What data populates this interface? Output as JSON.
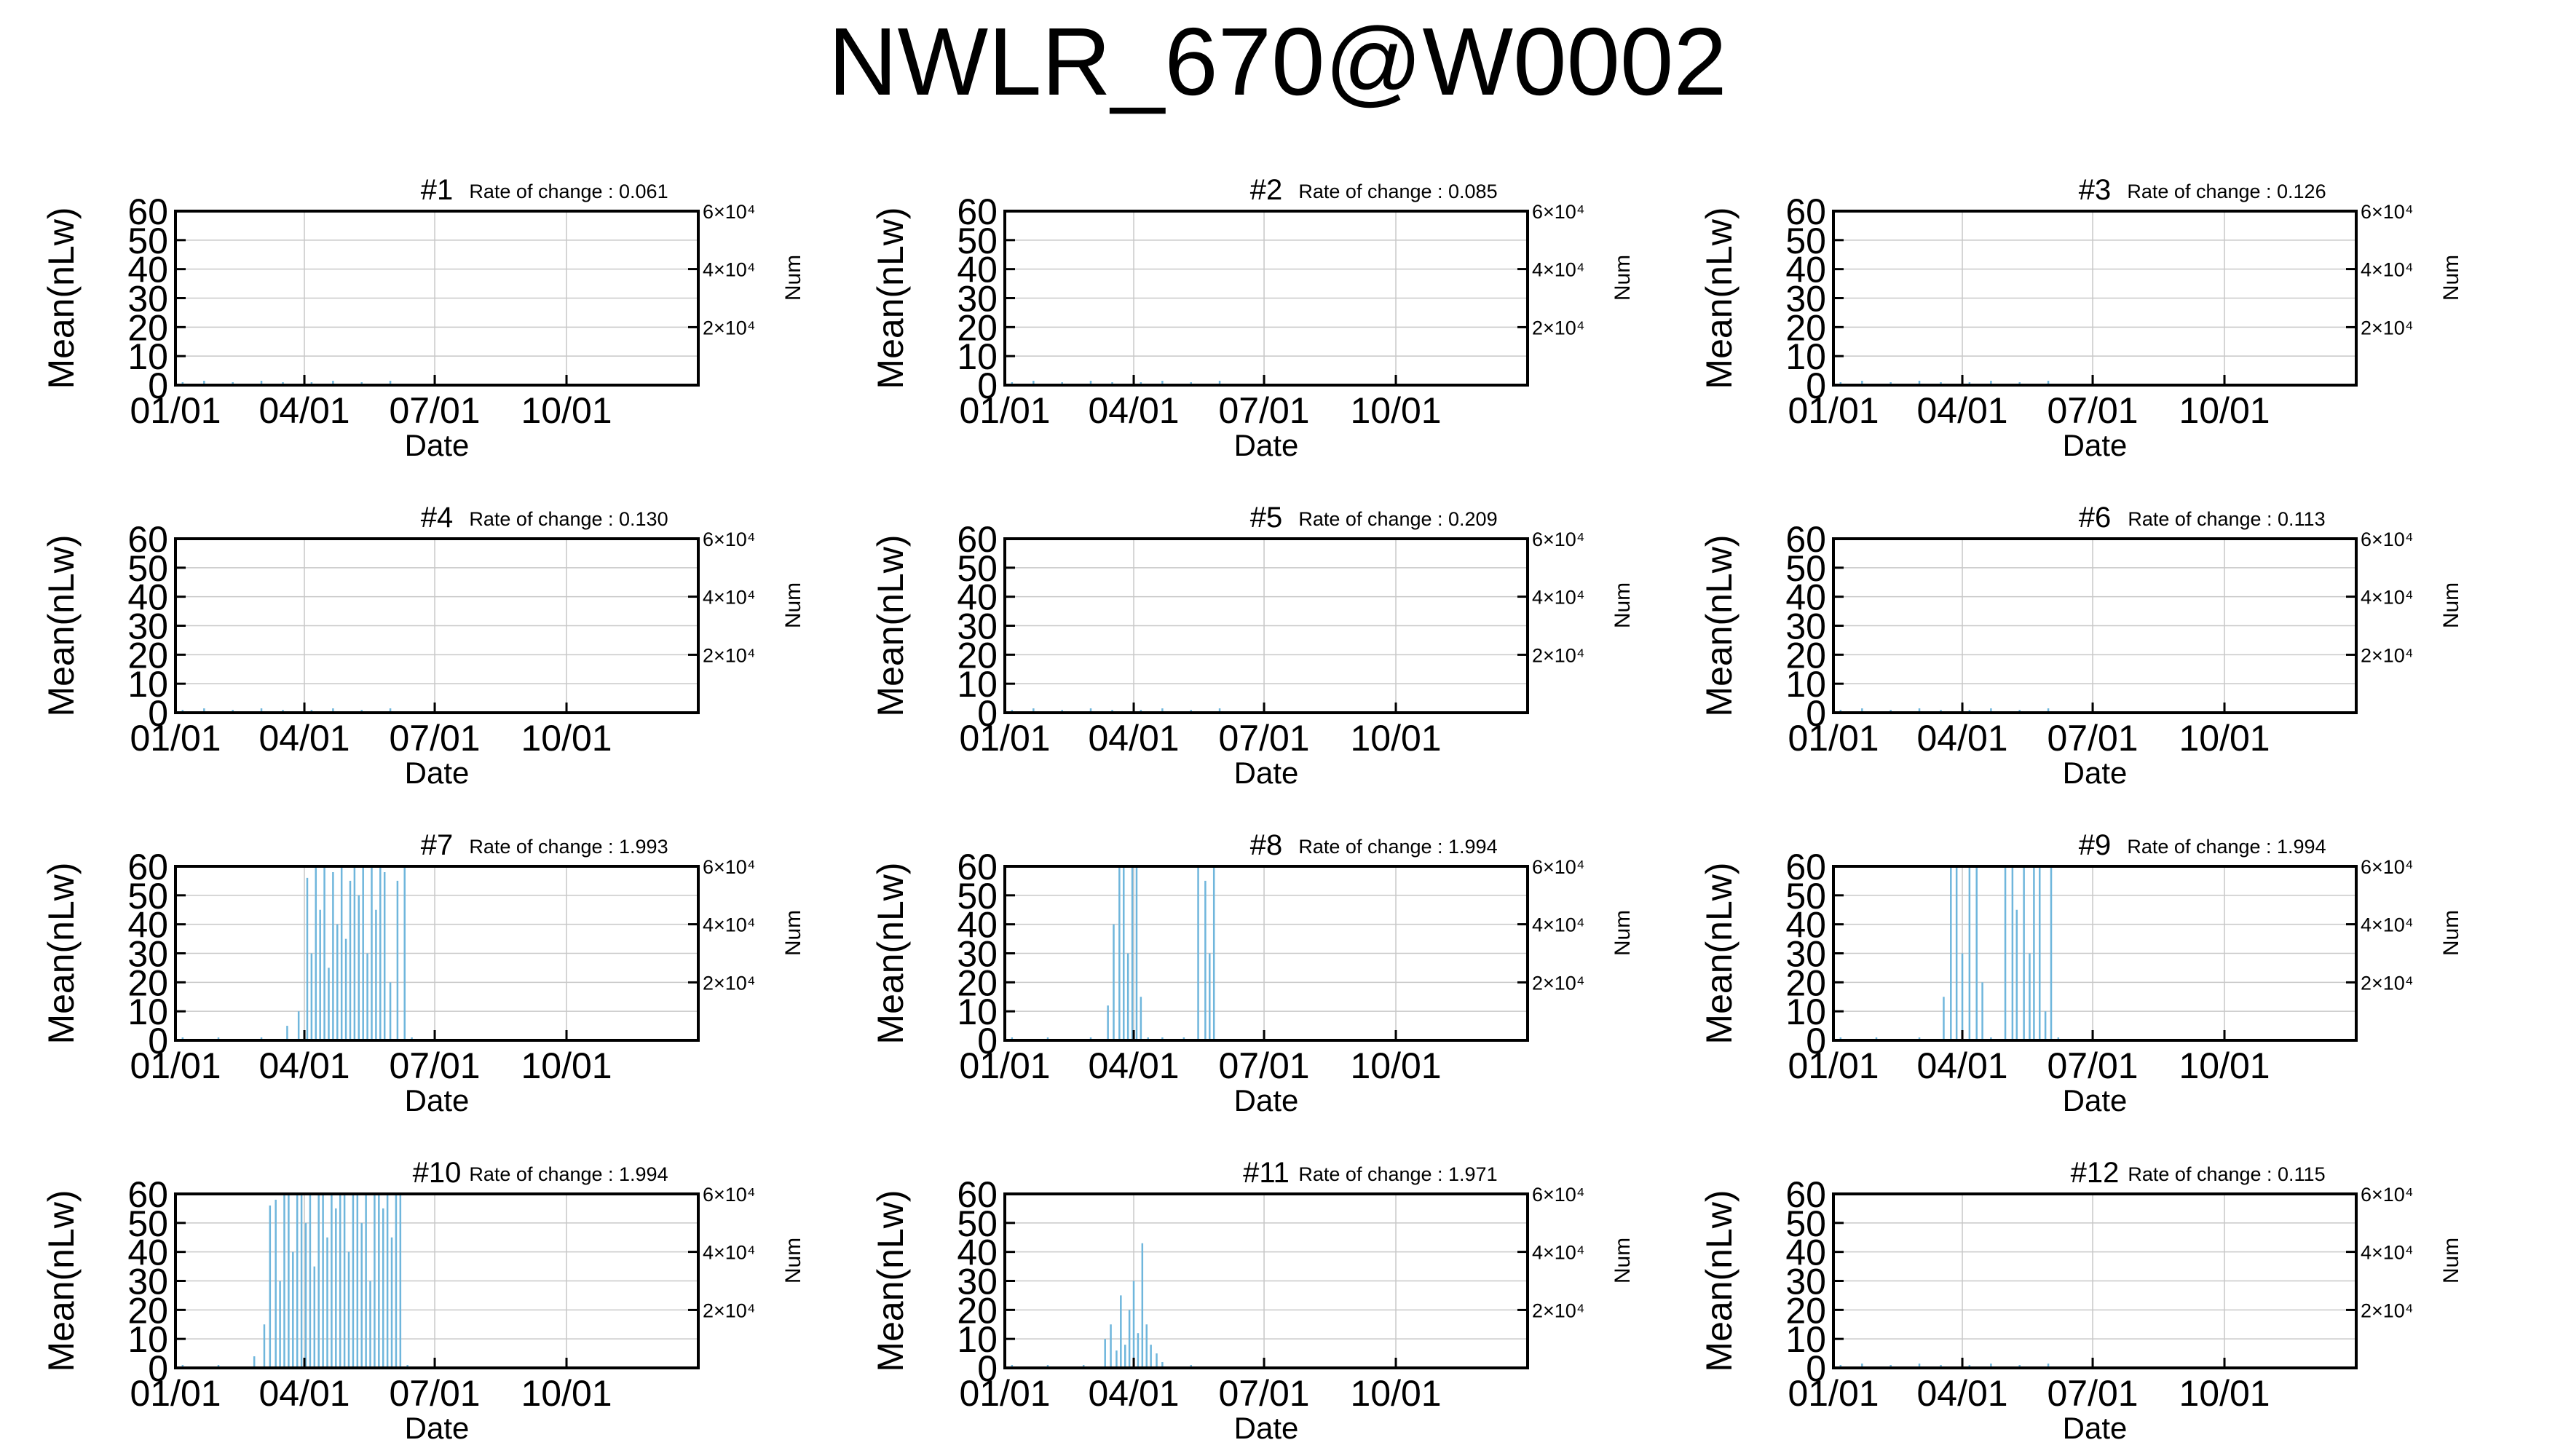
{
  "page": {
    "title": "NWLR_670@W0002"
  },
  "chart_data": [
    {
      "type": "line",
      "title": "#1",
      "annotation": "Rate of change : 0.061",
      "xlabel": "Date",
      "ylabel": "Mean(nLw)",
      "y2label": "Num",
      "xticks": [
        "01/01",
        "04/01",
        "07/01",
        "10/01"
      ],
      "xlim_days": [
        0,
        365
      ],
      "ylim": [
        0,
        60
      ],
      "yticks": [
        "0",
        "10",
        "20",
        "30",
        "40",
        "50",
        "60"
      ],
      "y2ticks": [
        "2×10⁴",
        "4×10⁴",
        "6×10⁴"
      ],
      "grid": true,
      "series": [
        {
          "style": "spikes",
          "color": "#6fb6dc",
          "x_days": [
            5,
            20,
            40,
            60,
            75,
            95,
            110,
            130,
            150
          ],
          "values": [
            1,
            1.5,
            1,
            1.5,
            1,
            1,
            1.5,
            1,
            1.5
          ]
        }
      ]
    },
    {
      "type": "line",
      "title": "#2",
      "annotation": "Rate of change : 0.085",
      "xlabel": "Date",
      "ylabel": "Mean(nLw)",
      "y2label": "Num",
      "xticks": [
        "01/01",
        "04/01",
        "07/01",
        "10/01"
      ],
      "xlim_days": [
        0,
        365
      ],
      "ylim": [
        0,
        60
      ],
      "yticks": [
        "0",
        "10",
        "20",
        "30",
        "40",
        "50",
        "60"
      ],
      "y2ticks": [
        "2×10⁴",
        "4×10⁴",
        "6×10⁴"
      ],
      "grid": true,
      "series": [
        {
          "style": "spikes",
          "color": "#6fb6dc",
          "x_days": [
            5,
            20,
            40,
            60,
            75,
            95,
            110,
            130,
            150
          ],
          "values": [
            1,
            1.5,
            1,
            1.5,
            1,
            1,
            1.5,
            1,
            1.5
          ]
        }
      ]
    },
    {
      "type": "line",
      "title": "#3",
      "annotation": "Rate of change : 0.126",
      "xlabel": "Date",
      "ylabel": "Mean(nLw)",
      "y2label": "Num",
      "xticks": [
        "01/01",
        "04/01",
        "07/01",
        "10/01"
      ],
      "xlim_days": [
        0,
        365
      ],
      "ylim": [
        0,
        60
      ],
      "yticks": [
        "0",
        "10",
        "20",
        "30",
        "40",
        "50",
        "60"
      ],
      "y2ticks": [
        "2×10⁴",
        "4×10⁴",
        "6×10⁴"
      ],
      "grid": true,
      "series": [
        {
          "style": "spikes",
          "color": "#6fb6dc",
          "x_days": [
            5,
            20,
            40,
            60,
            75,
            95,
            110,
            130,
            150
          ],
          "values": [
            1,
            1.5,
            1,
            1.5,
            1,
            1,
            1.5,
            1,
            1.5
          ]
        }
      ]
    },
    {
      "type": "line",
      "title": "#4",
      "annotation": "Rate of change : 0.130",
      "xlabel": "Date",
      "ylabel": "Mean(nLw)",
      "y2label": "Num",
      "xticks": [
        "01/01",
        "04/01",
        "07/01",
        "10/01"
      ],
      "xlim_days": [
        0,
        365
      ],
      "ylim": [
        0,
        60
      ],
      "yticks": [
        "0",
        "10",
        "20",
        "30",
        "40",
        "50",
        "60"
      ],
      "y2ticks": [
        "2×10⁴",
        "4×10⁴",
        "6×10⁴"
      ],
      "grid": true,
      "series": [
        {
          "style": "spikes",
          "color": "#6fb6dc",
          "x_days": [
            5,
            20,
            40,
            60,
            75,
            95,
            110,
            130,
            150
          ],
          "values": [
            1,
            1.5,
            1,
            1.5,
            1,
            1,
            1.5,
            1,
            1.5
          ]
        }
      ]
    },
    {
      "type": "line",
      "title": "#5",
      "annotation": "Rate of change : 0.209",
      "xlabel": "Date",
      "ylabel": "Mean(nLw)",
      "y2label": "Num",
      "xticks": [
        "01/01",
        "04/01",
        "07/01",
        "10/01"
      ],
      "xlim_days": [
        0,
        365
      ],
      "ylim": [
        0,
        60
      ],
      "yticks": [
        "0",
        "10",
        "20",
        "30",
        "40",
        "50",
        "60"
      ],
      "y2ticks": [
        "2×10⁴",
        "4×10⁴",
        "6×10⁴"
      ],
      "grid": true,
      "series": [
        {
          "style": "spikes",
          "color": "#6fb6dc",
          "x_days": [
            5,
            20,
            40,
            60,
            75,
            95,
            110,
            130,
            150
          ],
          "values": [
            1,
            1.5,
            1,
            1.5,
            1,
            1,
            1.5,
            1,
            1.5
          ]
        }
      ]
    },
    {
      "type": "line",
      "title": "#6",
      "annotation": "Rate of change : 0.113",
      "xlabel": "Date",
      "ylabel": "Mean(nLw)",
      "y2label": "Num",
      "xticks": [
        "01/01",
        "04/01",
        "07/01",
        "10/01"
      ],
      "xlim_days": [
        0,
        365
      ],
      "ylim": [
        0,
        60
      ],
      "yticks": [
        "0",
        "10",
        "20",
        "30",
        "40",
        "50",
        "60"
      ],
      "y2ticks": [
        "2×10⁴",
        "4×10⁴",
        "6×10⁴"
      ],
      "grid": true,
      "series": [
        {
          "style": "spikes",
          "color": "#6fb6dc",
          "x_days": [
            5,
            20,
            40,
            60,
            75,
            95,
            110,
            130,
            150
          ],
          "values": [
            1,
            1.5,
            1,
            1.5,
            1,
            1,
            1.5,
            1,
            1.5
          ]
        }
      ]
    },
    {
      "type": "line",
      "title": "#7",
      "annotation": "Rate of change : 1.993",
      "xlabel": "Date",
      "ylabel": "Mean(nLw)",
      "y2label": "Num",
      "xticks": [
        "01/01",
        "04/01",
        "07/01",
        "10/01"
      ],
      "xlim_days": [
        0,
        365
      ],
      "ylim": [
        0,
        60
      ],
      "yticks": [
        "0",
        "10",
        "20",
        "30",
        "40",
        "50",
        "60"
      ],
      "y2ticks": [
        "2×10⁴",
        "4×10⁴",
        "6×10⁴"
      ],
      "grid": true,
      "series": [
        {
          "style": "spikes",
          "color": "#6fb6dc",
          "x_days": [
            5,
            30,
            60,
            78,
            86,
            92,
            95,
            98,
            101,
            104,
            107,
            110,
            113,
            116,
            119,
            122,
            125,
            128,
            131,
            134,
            137,
            140,
            143,
            146,
            150,
            155,
            160,
            165
          ],
          "values": [
            1,
            1,
            1,
            5,
            10,
            56,
            30,
            60,
            45,
            60,
            25,
            58,
            40,
            60,
            35,
            55,
            60,
            50,
            60,
            30,
            60,
            45,
            60,
            58,
            20,
            55,
            60,
            1
          ]
        }
      ]
    },
    {
      "type": "line",
      "title": "#8",
      "annotation": "Rate of change : 1.994",
      "xlabel": "Date",
      "ylabel": "Mean(nLw)",
      "y2label": "Num",
      "xticks": [
        "01/01",
        "04/01",
        "07/01",
        "10/01"
      ],
      "xlim_days": [
        0,
        365
      ],
      "ylim": [
        0,
        60
      ],
      "yticks": [
        "0",
        "10",
        "20",
        "30",
        "40",
        "50",
        "60"
      ],
      "y2ticks": [
        "2×10⁴",
        "4×10⁴",
        "6×10⁴"
      ],
      "grid": true,
      "series": [
        {
          "style": "spikes",
          "color": "#6fb6dc",
          "x_days": [
            5,
            30,
            60,
            72,
            76,
            80,
            83,
            86,
            89,
            92,
            95,
            100,
            110,
            125,
            135,
            140,
            143,
            146
          ],
          "values": [
            1,
            1,
            1,
            12,
            40,
            60,
            60,
            30,
            60,
            60,
            15,
            1,
            1,
            1,
            60,
            55,
            30,
            60
          ]
        }
      ]
    },
    {
      "type": "line",
      "title": "#9",
      "annotation": "Rate of change : 1.994",
      "xlabel": "Date",
      "ylabel": "Mean(nLw)",
      "y2label": "Num",
      "xticks": [
        "01/01",
        "04/01",
        "07/01",
        "10/01"
      ],
      "xlim_days": [
        0,
        365
      ],
      "ylim": [
        0,
        60
      ],
      "yticks": [
        "0",
        "10",
        "20",
        "30",
        "40",
        "50",
        "60"
      ],
      "y2ticks": [
        "2×10⁴",
        "4×10⁴",
        "6×10⁴"
      ],
      "grid": true,
      "series": [
        {
          "style": "spikes",
          "color": "#6fb6dc",
          "x_days": [
            5,
            30,
            60,
            77,
            82,
            86,
            90,
            95,
            100,
            104,
            110,
            120,
            125,
            128,
            133,
            137,
            140,
            144,
            148,
            152,
            157
          ],
          "values": [
            1,
            1,
            1,
            15,
            60,
            60,
            30,
            60,
            60,
            20,
            1,
            60,
            60,
            45,
            60,
            30,
            60,
            60,
            10,
            60,
            1
          ]
        }
      ]
    },
    {
      "type": "line",
      "title": "#10",
      "annotation": "Rate of change : 1.994",
      "xlabel": "Date",
      "ylabel": "Mean(nLw)",
      "y2label": "Num",
      "xticks": [
        "01/01",
        "04/01",
        "07/01",
        "10/01"
      ],
      "xlim_days": [
        0,
        365
      ],
      "ylim": [
        0,
        60
      ],
      "yticks": [
        "0",
        "10",
        "20",
        "30",
        "40",
        "50",
        "60"
      ],
      "y2ticks": [
        "2×10⁴",
        "4×10⁴",
        "6×10⁴"
      ],
      "grid": true,
      "series": [
        {
          "style": "spikes",
          "color": "#6fb6dc",
          "x_days": [
            5,
            30,
            55,
            62,
            66,
            70,
            73,
            76,
            79,
            82,
            85,
            88,
            91,
            94,
            97,
            100,
            103,
            106,
            109,
            112,
            115,
            118,
            121,
            124,
            127,
            130,
            133,
            136,
            139,
            142,
            145,
            148,
            151,
            154,
            157,
            162
          ],
          "values": [
            1,
            1,
            4,
            15,
            56,
            58,
            30,
            60,
            60,
            40,
            60,
            60,
            50,
            60,
            35,
            60,
            60,
            45,
            60,
            55,
            60,
            60,
            40,
            60,
            60,
            50,
            60,
            30,
            60,
            60,
            55,
            60,
            45,
            60,
            60,
            1
          ]
        }
      ]
    },
    {
      "type": "line",
      "title": "#11",
      "annotation": "Rate of change : 1.971",
      "xlabel": "Date",
      "ylabel": "Mean(nLw)",
      "y2label": "Num",
      "xticks": [
        "01/01",
        "04/01",
        "07/01",
        "10/01"
      ],
      "xlim_days": [
        0,
        365
      ],
      "ylim": [
        0,
        60
      ],
      "yticks": [
        "0",
        "10",
        "20",
        "30",
        "40",
        "50",
        "60"
      ],
      "y2ticks": [
        "2×10⁴",
        "4×10⁴",
        "6×10⁴"
      ],
      "grid": true,
      "series": [
        {
          "style": "spikes",
          "color": "#6fb6dc",
          "x_days": [
            5,
            30,
            55,
            70,
            74,
            78,
            81,
            84,
            87,
            90,
            93,
            96,
            99,
            102,
            106,
            110,
            130
          ],
          "values": [
            1,
            1,
            1,
            10,
            15,
            6,
            25,
            8,
            20,
            30,
            12,
            43,
            15,
            8,
            5,
            2,
            1
          ]
        }
      ]
    },
    {
      "type": "line",
      "title": "#12",
      "annotation": "Rate of change : 0.115",
      "xlabel": "Date",
      "ylabel": "Mean(nLw)",
      "y2label": "Num",
      "xticks": [
        "01/01",
        "04/01",
        "07/01",
        "10/01"
      ],
      "xlim_days": [
        0,
        365
      ],
      "ylim": [
        0,
        60
      ],
      "yticks": [
        "0",
        "10",
        "20",
        "30",
        "40",
        "50",
        "60"
      ],
      "y2ticks": [
        "2×10⁴",
        "4×10⁴",
        "6×10⁴"
      ],
      "grid": true,
      "series": [
        {
          "style": "spikes",
          "color": "#6fb6dc",
          "x_days": [
            5,
            20,
            40,
            60,
            75,
            95,
            110,
            130,
            150
          ],
          "values": [
            1,
            1.5,
            1,
            1.5,
            1,
            1,
            1.5,
            1,
            1.5
          ]
        }
      ]
    }
  ]
}
